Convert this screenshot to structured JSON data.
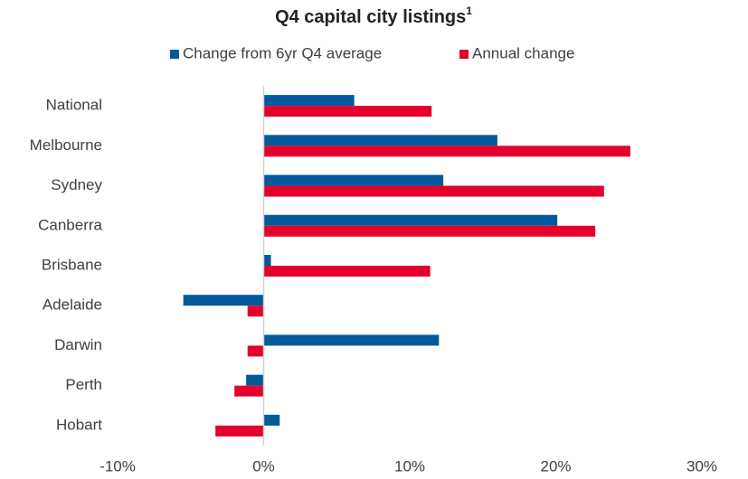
{
  "chart_data": {
    "type": "hbar",
    "title": "Q4 capital city listings",
    "title_note": "1",
    "categories": [
      "National",
      "Melbourne",
      "Sydney",
      "Canberra",
      "Brisbane",
      "Adelaide",
      "Darwin",
      "Perth",
      "Hobart"
    ],
    "series": [
      {
        "name": "Change from 6yr Q4 average",
        "color": "#005a9c",
        "values": [
          6.2,
          16.0,
          12.3,
          20.1,
          0.5,
          -5.5,
          12.0,
          -1.2,
          1.1
        ]
      },
      {
        "name": "Annual change",
        "color": "#e4002b",
        "values": [
          11.5,
          25.1,
          23.3,
          22.7,
          11.4,
          -1.1,
          -1.1,
          -2.0,
          -3.3
        ]
      }
    ],
    "xlim": [
      -10,
      30
    ],
    "xticks": [
      {
        "value": -10,
        "label": "-10%"
      },
      {
        "value": 0,
        "label": "0%"
      },
      {
        "value": 10,
        "label": "10%"
      },
      {
        "value": 20,
        "label": "20%"
      },
      {
        "value": 30,
        "label": "30%"
      }
    ],
    "legend": "top",
    "grid": false
  }
}
